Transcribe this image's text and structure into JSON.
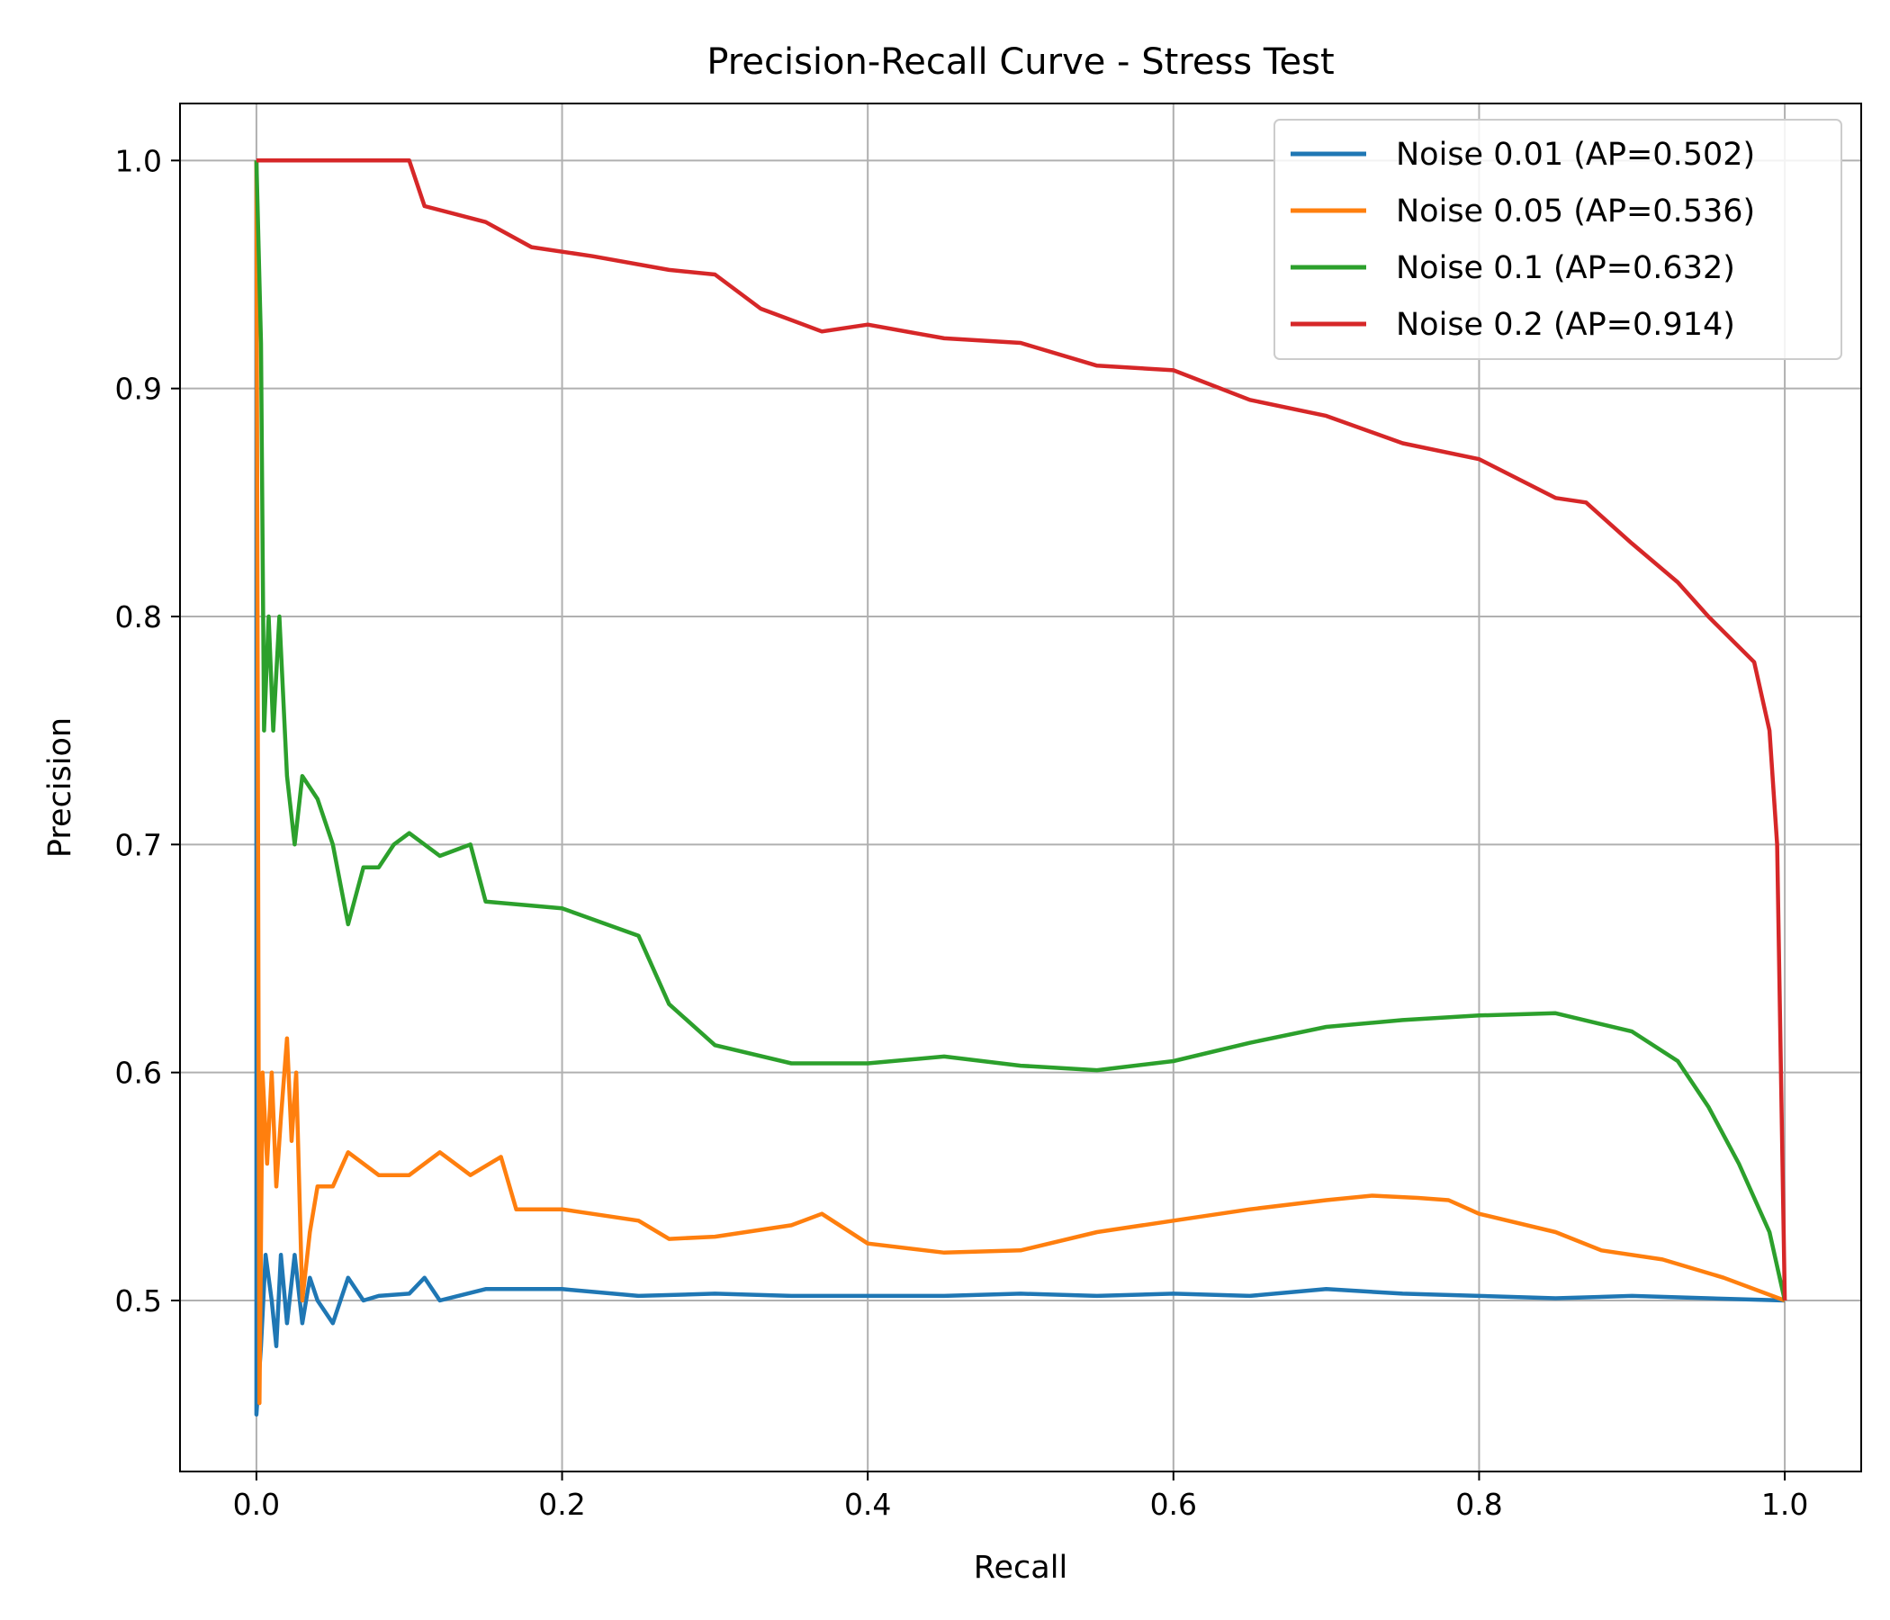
{
  "chart_data": {
    "type": "line",
    "title": "Precision-Recall Curve - Stress Test",
    "xlabel": "Recall",
    "ylabel": "Precision",
    "xlim": [
      -0.05,
      1.05
    ],
    "ylim": [
      0.425,
      1.025
    ],
    "xticks": [
      0.0,
      0.2,
      0.4,
      0.6,
      0.8,
      1.0
    ],
    "xtick_labels": [
      "0.0",
      "0.2",
      "0.4",
      "0.6",
      "0.8",
      "1.0"
    ],
    "yticks": [
      0.5,
      0.6,
      0.7,
      0.8,
      0.9,
      1.0
    ],
    "ytick_labels": [
      "0.5",
      "0.6",
      "0.7",
      "0.8",
      "0.9",
      "1.0"
    ],
    "grid": true,
    "legend_position": "top-right",
    "series": [
      {
        "name": "Noise 0.01 (AP=0.502)",
        "color": "#1f77b4",
        "points": [
          [
            0.0,
            1.0
          ],
          [
            0.0,
            0.45
          ],
          [
            0.003,
            0.48
          ],
          [
            0.006,
            0.52
          ],
          [
            0.01,
            0.5
          ],
          [
            0.013,
            0.48
          ],
          [
            0.016,
            0.52
          ],
          [
            0.02,
            0.49
          ],
          [
            0.025,
            0.52
          ],
          [
            0.03,
            0.49
          ],
          [
            0.035,
            0.51
          ],
          [
            0.04,
            0.5
          ],
          [
            0.05,
            0.49
          ],
          [
            0.06,
            0.51
          ],
          [
            0.07,
            0.5
          ],
          [
            0.08,
            0.502
          ],
          [
            0.1,
            0.503
          ],
          [
            0.11,
            0.51
          ],
          [
            0.12,
            0.5
          ],
          [
            0.15,
            0.505
          ],
          [
            0.2,
            0.505
          ],
          [
            0.25,
            0.502
          ],
          [
            0.3,
            0.503
          ],
          [
            0.35,
            0.502
          ],
          [
            0.4,
            0.502
          ],
          [
            0.45,
            0.502
          ],
          [
            0.5,
            0.503
          ],
          [
            0.55,
            0.502
          ],
          [
            0.6,
            0.503
          ],
          [
            0.65,
            0.502
          ],
          [
            0.7,
            0.505
          ],
          [
            0.75,
            0.503
          ],
          [
            0.8,
            0.502
          ],
          [
            0.85,
            0.501
          ],
          [
            0.9,
            0.502
          ],
          [
            0.95,
            0.501
          ],
          [
            1.0,
            0.5
          ]
        ]
      },
      {
        "name": "Noise 0.05 (AP=0.536)",
        "color": "#ff7f0e",
        "points": [
          [
            0.0,
            1.0
          ],
          [
            0.002,
            0.455
          ],
          [
            0.004,
            0.6
          ],
          [
            0.007,
            0.56
          ],
          [
            0.01,
            0.6
          ],
          [
            0.013,
            0.55
          ],
          [
            0.016,
            0.58
          ],
          [
            0.02,
            0.615
          ],
          [
            0.023,
            0.57
          ],
          [
            0.026,
            0.6
          ],
          [
            0.03,
            0.5
          ],
          [
            0.035,
            0.53
          ],
          [
            0.04,
            0.55
          ],
          [
            0.05,
            0.55
          ],
          [
            0.06,
            0.565
          ],
          [
            0.08,
            0.555
          ],
          [
            0.1,
            0.555
          ],
          [
            0.12,
            0.565
          ],
          [
            0.14,
            0.555
          ],
          [
            0.16,
            0.563
          ],
          [
            0.17,
            0.54
          ],
          [
            0.2,
            0.54
          ],
          [
            0.25,
            0.535
          ],
          [
            0.27,
            0.527
          ],
          [
            0.3,
            0.528
          ],
          [
            0.35,
            0.533
          ],
          [
            0.37,
            0.538
          ],
          [
            0.4,
            0.525
          ],
          [
            0.45,
            0.521
          ],
          [
            0.5,
            0.522
          ],
          [
            0.55,
            0.53
          ],
          [
            0.6,
            0.535
          ],
          [
            0.65,
            0.54
          ],
          [
            0.7,
            0.544
          ],
          [
            0.73,
            0.546
          ],
          [
            0.76,
            0.545
          ],
          [
            0.78,
            0.544
          ],
          [
            0.8,
            0.538
          ],
          [
            0.85,
            0.53
          ],
          [
            0.88,
            0.522
          ],
          [
            0.92,
            0.518
          ],
          [
            0.96,
            0.51
          ],
          [
            1.0,
            0.5
          ]
        ]
      },
      {
        "name": "Noise 0.1 (AP=0.632)",
        "color": "#2ca02c",
        "points": [
          [
            0.0,
            1.0
          ],
          [
            0.003,
            0.92
          ],
          [
            0.005,
            0.75
          ],
          [
            0.008,
            0.8
          ],
          [
            0.011,
            0.75
          ],
          [
            0.015,
            0.8
          ],
          [
            0.02,
            0.73
          ],
          [
            0.025,
            0.7
          ],
          [
            0.03,
            0.73
          ],
          [
            0.04,
            0.72
          ],
          [
            0.05,
            0.7
          ],
          [
            0.06,
            0.665
          ],
          [
            0.07,
            0.69
          ],
          [
            0.08,
            0.69
          ],
          [
            0.09,
            0.7
          ],
          [
            0.1,
            0.705
          ],
          [
            0.12,
            0.695
          ],
          [
            0.14,
            0.7
          ],
          [
            0.15,
            0.675
          ],
          [
            0.2,
            0.672
          ],
          [
            0.25,
            0.66
          ],
          [
            0.27,
            0.63
          ],
          [
            0.3,
            0.612
          ],
          [
            0.35,
            0.604
          ],
          [
            0.4,
            0.604
          ],
          [
            0.45,
            0.607
          ],
          [
            0.5,
            0.603
          ],
          [
            0.55,
            0.601
          ],
          [
            0.6,
            0.605
          ],
          [
            0.65,
            0.613
          ],
          [
            0.7,
            0.62
          ],
          [
            0.75,
            0.623
          ],
          [
            0.8,
            0.625
          ],
          [
            0.85,
            0.626
          ],
          [
            0.9,
            0.618
          ],
          [
            0.93,
            0.605
          ],
          [
            0.95,
            0.585
          ],
          [
            0.97,
            0.56
          ],
          [
            0.99,
            0.53
          ],
          [
            1.0,
            0.5
          ]
        ]
      },
      {
        "name": "Noise 0.2 (AP=0.914)",
        "color": "#d62728",
        "points": [
          [
            0.0,
            1.0
          ],
          [
            0.1,
            1.0
          ],
          [
            0.11,
            0.98
          ],
          [
            0.15,
            0.973
          ],
          [
            0.18,
            0.962
          ],
          [
            0.22,
            0.958
          ],
          [
            0.27,
            0.952
          ],
          [
            0.3,
            0.95
          ],
          [
            0.33,
            0.935
          ],
          [
            0.37,
            0.925
          ],
          [
            0.4,
            0.928
          ],
          [
            0.45,
            0.922
          ],
          [
            0.5,
            0.92
          ],
          [
            0.55,
            0.91
          ],
          [
            0.6,
            0.908
          ],
          [
            0.65,
            0.895
          ],
          [
            0.7,
            0.888
          ],
          [
            0.75,
            0.876
          ],
          [
            0.8,
            0.869
          ],
          [
            0.85,
            0.852
          ],
          [
            0.87,
            0.85
          ],
          [
            0.9,
            0.832
          ],
          [
            0.93,
            0.815
          ],
          [
            0.95,
            0.8
          ],
          [
            0.98,
            0.78
          ],
          [
            0.99,
            0.75
          ],
          [
            0.995,
            0.7
          ],
          [
            1.0,
            0.5
          ]
        ]
      }
    ]
  }
}
